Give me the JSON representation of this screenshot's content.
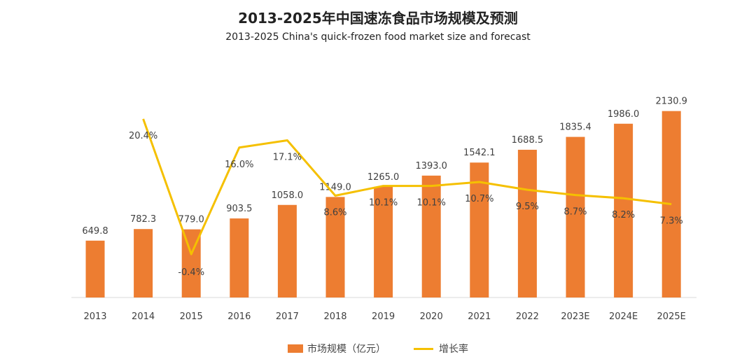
{
  "chart_data": {
    "type": "bar",
    "title": "2013-2025年中国速冻食品市场规模及预测",
    "subtitle": "2013-2025 China's quick-frozen food market size and forecast",
    "categories": [
      "2013",
      "2014",
      "2015",
      "2016",
      "2017",
      "2018",
      "2019",
      "2020",
      "2021",
      "2022",
      "2023E",
      "2024E",
      "2025E"
    ],
    "series": [
      {
        "name": "市场规模（亿元）",
        "kind": "bar",
        "color": "#ED7D31",
        "values": [
          649.8,
          782.3,
          779.0,
          903.5,
          1058.0,
          1149.0,
          1265.0,
          1393.0,
          1542.1,
          1688.5,
          1835.4,
          1986.0,
          2130.9
        ],
        "labels": [
          "649.8",
          "782.3",
          "779.0",
          "903.5",
          "1058.0",
          "1149.0",
          "1265.0",
          "1393.0",
          "1542.1",
          "1688.5",
          "1835.4",
          "1986.0",
          "2130.9"
        ]
      },
      {
        "name": "增长率",
        "kind": "line",
        "color": "#F5C000",
        "values": [
          null,
          20.4,
          -0.4,
          16.0,
          17.1,
          8.6,
          10.1,
          10.1,
          10.7,
          9.5,
          8.7,
          8.2,
          7.3
        ],
        "labels": [
          null,
          "20.4%",
          "-0.4%",
          "16.0%",
          "17.1%",
          "8.6%",
          "10.1%",
          "10.1%",
          "10.7%",
          "9.5%",
          "8.7%",
          "8.2%",
          "7.3%"
        ]
      }
    ],
    "ylim": [
      0,
      2200
    ],
    "y2lim": [
      -2,
      22
    ],
    "xlabel": "",
    "ylabel": "",
    "grid": false,
    "legend_position": "bottom"
  }
}
